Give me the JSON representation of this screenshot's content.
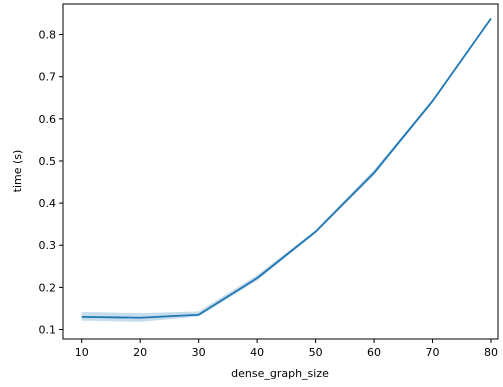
{
  "chart_data": {
    "type": "line",
    "title": "",
    "xlabel": "dense_graph_size",
    "ylabel": "time (s)",
    "xlim": [
      6.8,
      81.2
    ],
    "ylim": [
      0.0775,
      0.8725
    ],
    "xticks": [
      10,
      20,
      30,
      40,
      50,
      60,
      70,
      80
    ],
    "yticks": [
      0.1,
      0.2,
      0.3,
      0.4,
      0.5,
      0.6,
      0.7,
      0.8
    ],
    "ytick_labels": [
      "0.1",
      "0.2",
      "0.3",
      "0.4",
      "0.5",
      "0.6",
      "0.7",
      "0.8"
    ],
    "grid": false,
    "legend": "none",
    "series": [
      {
        "x": [
          10,
          20,
          30,
          40,
          50,
          60,
          70,
          80
        ],
        "values": [
          0.13,
          0.128,
          0.135,
          0.222,
          0.332,
          0.472,
          0.642,
          0.838
        ],
        "ci_lower": [
          0.121,
          0.118,
          0.131,
          0.216,
          0.329,
          0.466,
          0.639,
          0.836
        ],
        "ci_upper": [
          0.142,
          0.139,
          0.143,
          0.229,
          0.336,
          0.479,
          0.646,
          0.841
        ],
        "color": "#1f77b4"
      }
    ]
  }
}
